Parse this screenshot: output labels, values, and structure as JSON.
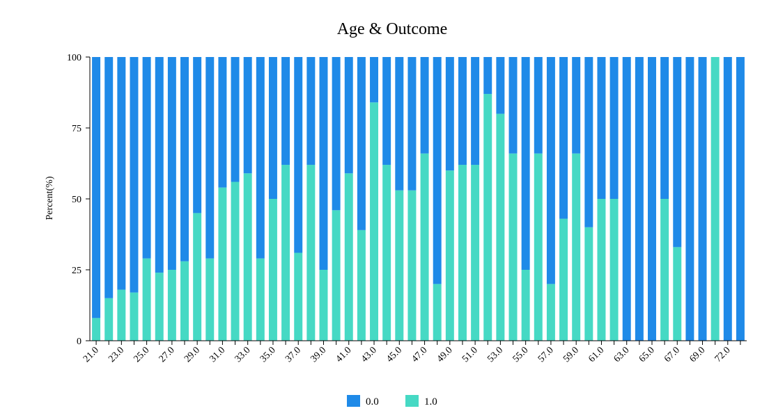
{
  "chart_data": {
    "type": "bar",
    "stacked": true,
    "normalized_percent": true,
    "title": "Age & Outcome",
    "xlabel": "",
    "ylabel": "Percent(%)",
    "ylim": [
      0,
      100
    ],
    "yticks": [
      0,
      25,
      50,
      75,
      100
    ],
    "legend_position": "bottom-center",
    "grid": false,
    "categories": [
      "21.0",
      "22.0",
      "23.0",
      "24.0",
      "25.0",
      "26.0",
      "27.0",
      "28.0",
      "29.0",
      "30.0",
      "31.0",
      "32.0",
      "33.0",
      "34.0",
      "35.0",
      "36.0",
      "37.0",
      "38.0",
      "39.0",
      "40.0",
      "41.0",
      "42.0",
      "43.0",
      "44.0",
      "45.0",
      "46.0",
      "47.0",
      "48.0",
      "49.0",
      "50.0",
      "51.0",
      "52.0",
      "53.0",
      "54.0",
      "55.0",
      "56.0",
      "57.0",
      "58.0",
      "59.0",
      "60.0",
      "61.0",
      "62.0",
      "63.0",
      "64.0",
      "65.0",
      "66.0",
      "67.0",
      "68.0",
      "69.0",
      "70.0",
      "72.0",
      "81.0"
    ],
    "tick_labels_shown": [
      "21.0",
      "23.0",
      "25.0",
      "27.0",
      "29.0",
      "31.0",
      "33.0",
      "35.0",
      "37.0",
      "39.0",
      "41.0",
      "43.0",
      "45.0",
      "47.0",
      "49.0",
      "51.0",
      "53.0",
      "55.0",
      "57.0",
      "59.0",
      "61.0",
      "63.0",
      "65.0",
      "67.0",
      "69.0",
      "72.0"
    ],
    "series": [
      {
        "name": "1.0",
        "color": "#46d9c4",
        "values": [
          8,
          15,
          18,
          17,
          29,
          24,
          25,
          28,
          45,
          29,
          54,
          56,
          59,
          29,
          50,
          62,
          31,
          62,
          25,
          46,
          59,
          39,
          84,
          62,
          53,
          53,
          66,
          20,
          60,
          62,
          62,
          87,
          80,
          66,
          25,
          66,
          20,
          43,
          66,
          40,
          50,
          50,
          0,
          0,
          0,
          50,
          33,
          0,
          0,
          100,
          0,
          0
        ]
      },
      {
        "name": "0.0",
        "color": "#1f8ae8",
        "values": [
          92,
          85,
          82,
          83,
          71,
          76,
          75,
          72,
          55,
          71,
          46,
          44,
          41,
          71,
          50,
          38,
          69,
          38,
          75,
          54,
          41,
          61,
          16,
          38,
          47,
          47,
          34,
          80,
          40,
          38,
          38,
          13,
          20,
          34,
          75,
          34,
          80,
          57,
          34,
          60,
          50,
          50,
          100,
          100,
          100,
          50,
          67,
          100,
          100,
          0,
          100,
          100
        ]
      }
    ]
  }
}
